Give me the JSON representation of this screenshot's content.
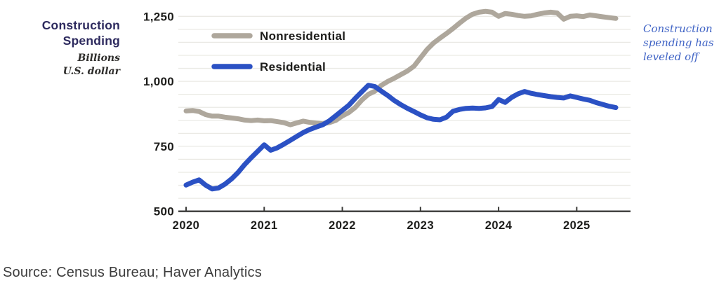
{
  "header": {
    "title_line1": "Construction",
    "title_line2": "Spending",
    "subtitle_line1": "Billions",
    "subtitle_line2": "U.S. dollar"
  },
  "annotation": {
    "text": "Construction spending has leveled off",
    "color": "#3f63c5"
  },
  "footer": {
    "source": "Source: Census Bureau; Haver Analytics"
  },
  "chart_data": {
    "type": "line",
    "frequency": "monthly",
    "x_start": "2020-01",
    "x_end": "2025-07",
    "x_tick_labels": [
      "2020",
      "2021",
      "2022",
      "2023",
      "2024",
      "2025"
    ],
    "y_ticks": [
      {
        "value": 500,
        "label": "500"
      },
      {
        "value": 750,
        "label": "750"
      },
      {
        "value": 1000,
        "label": "1,000"
      },
      {
        "value": 1250,
        "label": "1,250"
      }
    ],
    "ylim": [
      500,
      1285
    ],
    "y_gridline_step": 50,
    "grid_on": true,
    "legend_position": "top-left-inside",
    "grid_color": "#eae9e4",
    "axis_color": "#3a3a38",
    "label_color": "#1d1d1b",
    "series": [
      {
        "name": "Nonresidential",
        "color": "#aea79c",
        "values": [
          886,
          888,
          884,
          872,
          866,
          866,
          862,
          859,
          856,
          851,
          849,
          851,
          848,
          849,
          845,
          841,
          833,
          840,
          847,
          842,
          839,
          837,
          841,
          850,
          867,
          880,
          900,
          928,
          950,
          962,
          985,
          1000,
          1012,
          1026,
          1040,
          1058,
          1090,
          1122,
          1147,
          1166,
          1184,
          1203,
          1224,
          1243,
          1258,
          1266,
          1269,
          1266,
          1250,
          1261,
          1258,
          1253,
          1250,
          1252,
          1258,
          1263,
          1266,
          1263,
          1239,
          1250,
          1252,
          1249,
          1255,
          1252,
          1248,
          1245,
          1242
        ]
      },
      {
        "name": "Residential",
        "color": "#2b51c4",
        "values": [
          601,
          612,
          621,
          601,
          586,
          590,
          605,
          625,
          650,
          680,
          706,
          731,
          756,
          735,
          744,
          758,
          773,
          788,
          803,
          815,
          824,
          833,
          848,
          868,
          888,
          908,
          935,
          960,
          985,
          980,
          962,
          945,
          926,
          910,
          896,
          884,
          871,
          860,
          854,
          852,
          862,
          885,
          892,
          896,
          897,
          896,
          898,
          903,
          930,
          919,
          938,
          952,
          961,
          954,
          949,
          945,
          941,
          938,
          936,
          944,
          938,
          932,
          927,
          918,
          911,
          904,
          899
        ]
      }
    ]
  }
}
